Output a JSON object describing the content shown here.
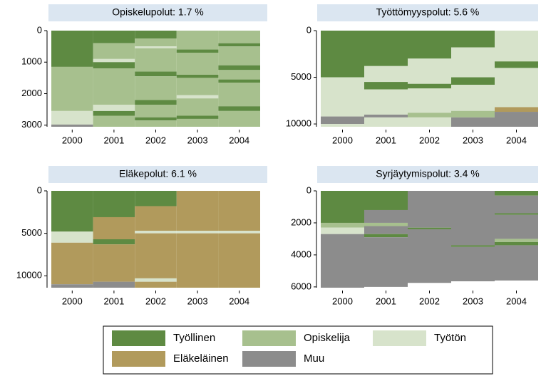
{
  "legend": [
    {
      "name": "Työllinen",
      "color": "#5e8a42"
    },
    {
      "name": "Opiskelija",
      "color": "#a7c08e"
    },
    {
      "name": "Työtön",
      "color": "#d7e3cb"
    },
    {
      "name": "Eläkeläinen",
      "color": "#b19a5c"
    },
    {
      "name": "Muu",
      "color": "#8c8c8c"
    }
  ],
  "chart_data": [
    {
      "type": "sequence",
      "title": "Opiskelupolut: 1.7 %",
      "categories": [
        "2000",
        "2001",
        "2002",
        "2003",
        "2004"
      ],
      "ylim": [
        0,
        3050
      ],
      "yticks": [
        0,
        1000,
        2000,
        3000
      ],
      "y_inverted": true,
      "columns": [
        [
          {
            "state": 0,
            "from": 0,
            "to": 1150
          },
          {
            "state": 1,
            "from": 1150,
            "to": 2550
          },
          {
            "state": 2,
            "from": 2550,
            "to": 2980
          },
          {
            "state": 4,
            "from": 2980,
            "to": 3050
          }
        ],
        [
          {
            "state": 0,
            "from": 0,
            "to": 400
          },
          {
            "state": 1,
            "from": 400,
            "to": 900
          },
          {
            "state": 2,
            "from": 900,
            "to": 1000
          },
          {
            "state": 0,
            "from": 1000,
            "to": 1200
          },
          {
            "state": 1,
            "from": 1200,
            "to": 2350
          },
          {
            "state": 2,
            "from": 2350,
            "to": 2550
          },
          {
            "state": 0,
            "from": 2550,
            "to": 2700
          },
          {
            "state": 1,
            "from": 2700,
            "to": 3050
          }
        ],
        [
          {
            "state": 0,
            "from": 0,
            "to": 250
          },
          {
            "state": 1,
            "from": 250,
            "to": 500
          },
          {
            "state": 2,
            "from": 500,
            "to": 560
          },
          {
            "state": 1,
            "from": 560,
            "to": 1300
          },
          {
            "state": 0,
            "from": 1300,
            "to": 1450
          },
          {
            "state": 1,
            "from": 1450,
            "to": 2200
          },
          {
            "state": 0,
            "from": 2200,
            "to": 2350
          },
          {
            "state": 1,
            "from": 2350,
            "to": 2750
          },
          {
            "state": 0,
            "from": 2750,
            "to": 2850
          },
          {
            "state": 1,
            "from": 2850,
            "to": 3050
          }
        ],
        [
          {
            "state": 1,
            "from": 0,
            "to": 600
          },
          {
            "state": 0,
            "from": 600,
            "to": 700
          },
          {
            "state": 1,
            "from": 700,
            "to": 1400
          },
          {
            "state": 0,
            "from": 1400,
            "to": 1500
          },
          {
            "state": 1,
            "from": 1500,
            "to": 2050
          },
          {
            "state": 2,
            "from": 2050,
            "to": 2150
          },
          {
            "state": 1,
            "from": 2150,
            "to": 2700
          },
          {
            "state": 0,
            "from": 2700,
            "to": 2800
          },
          {
            "state": 1,
            "from": 2800,
            "to": 3050
          }
        ],
        [
          {
            "state": 1,
            "from": 0,
            "to": 400
          },
          {
            "state": 0,
            "from": 400,
            "to": 500
          },
          {
            "state": 1,
            "from": 500,
            "to": 1100
          },
          {
            "state": 0,
            "from": 1100,
            "to": 1250
          },
          {
            "state": 1,
            "from": 1250,
            "to": 1550
          },
          {
            "state": 0,
            "from": 1550,
            "to": 1650
          },
          {
            "state": 1,
            "from": 1650,
            "to": 2400
          },
          {
            "state": 0,
            "from": 2400,
            "to": 2550
          },
          {
            "state": 1,
            "from": 2550,
            "to": 3050
          }
        ]
      ]
    },
    {
      "type": "sequence",
      "title": "Työttömyyspolut: 5.6 %",
      "categories": [
        "2000",
        "2001",
        "2002",
        "2003",
        "2004"
      ],
      "ylim": [
        0,
        10300
      ],
      "yticks": [
        0,
        5000,
        10000
      ],
      "y_inverted": true,
      "columns": [
        [
          {
            "state": 0,
            "from": 0,
            "to": 5000
          },
          {
            "state": 2,
            "from": 5000,
            "to": 9200
          },
          {
            "state": 4,
            "from": 9200,
            "to": 10000
          },
          {
            "state": 2,
            "from": 10000,
            "to": 10300
          }
        ],
        [
          {
            "state": 0,
            "from": 0,
            "to": 3800
          },
          {
            "state": 2,
            "from": 3800,
            "to": 5500
          },
          {
            "state": 0,
            "from": 5500,
            "to": 6300
          },
          {
            "state": 2,
            "from": 6300,
            "to": 9000
          },
          {
            "state": 4,
            "from": 9000,
            "to": 9300
          },
          {
            "state": 2,
            "from": 9300,
            "to": 10300
          }
        ],
        [
          {
            "state": 0,
            "from": 0,
            "to": 3000
          },
          {
            "state": 2,
            "from": 3000,
            "to": 5700
          },
          {
            "state": 0,
            "from": 5700,
            "to": 6200
          },
          {
            "state": 2,
            "from": 6200,
            "to": 8800
          },
          {
            "state": 1,
            "from": 8800,
            "to": 9300
          },
          {
            "state": 2,
            "from": 9300,
            "to": 10300
          }
        ],
        [
          {
            "state": 0,
            "from": 0,
            "to": 1800
          },
          {
            "state": 2,
            "from": 1800,
            "to": 5000
          },
          {
            "state": 0,
            "from": 5000,
            "to": 5800
          },
          {
            "state": 2,
            "from": 5800,
            "to": 8600
          },
          {
            "state": 1,
            "from": 8600,
            "to": 9300
          },
          {
            "state": 4,
            "from": 9300,
            "to": 10300
          }
        ],
        [
          {
            "state": 2,
            "from": 0,
            "to": 3300
          },
          {
            "state": 0,
            "from": 3300,
            "to": 4000
          },
          {
            "state": 2,
            "from": 4000,
            "to": 8200
          },
          {
            "state": 3,
            "from": 8200,
            "to": 8700
          },
          {
            "state": 4,
            "from": 8700,
            "to": 10300
          }
        ]
      ]
    },
    {
      "type": "sequence",
      "title": "Eläkepolut: 6.1 %",
      "categories": [
        "2000",
        "2001",
        "2002",
        "2003",
        "2004"
      ],
      "ylim": [
        0,
        11400
      ],
      "yticks": [
        0,
        5000,
        10000
      ],
      "y_inverted": true,
      "columns": [
        [
          {
            "state": 0,
            "from": 0,
            "to": 4800
          },
          {
            "state": 2,
            "from": 4800,
            "to": 6100
          },
          {
            "state": 3,
            "from": 6100,
            "to": 11000
          },
          {
            "state": 4,
            "from": 11000,
            "to": 11400
          }
        ],
        [
          {
            "state": 0,
            "from": 0,
            "to": 3100
          },
          {
            "state": 3,
            "from": 3100,
            "to": 5700
          },
          {
            "state": 0,
            "from": 5700,
            "to": 6300
          },
          {
            "state": 3,
            "from": 6300,
            "to": 10700
          },
          {
            "state": 4,
            "from": 10700,
            "to": 11400
          }
        ],
        [
          {
            "state": 0,
            "from": 0,
            "to": 1800
          },
          {
            "state": 3,
            "from": 1800,
            "to": 4700
          },
          {
            "state": 2,
            "from": 4700,
            "to": 5000
          },
          {
            "state": 3,
            "from": 5000,
            "to": 10300
          },
          {
            "state": 2,
            "from": 10300,
            "to": 10700
          },
          {
            "state": 3,
            "from": 10700,
            "to": 11400
          }
        ],
        [
          {
            "state": 3,
            "from": 0,
            "to": 4700
          },
          {
            "state": 2,
            "from": 4700,
            "to": 5000
          },
          {
            "state": 3,
            "from": 5000,
            "to": 11400
          }
        ],
        [
          {
            "state": 3,
            "from": 0,
            "to": 4700
          },
          {
            "state": 2,
            "from": 4700,
            "to": 5000
          },
          {
            "state": 3,
            "from": 5000,
            "to": 11400
          }
        ]
      ]
    },
    {
      "type": "sequence",
      "title": "Syrjäytymispolut: 3.4 %",
      "categories": [
        "2000",
        "2001",
        "2002",
        "2003",
        "2004"
      ],
      "ylim": [
        0,
        6050
      ],
      "yticks": [
        0,
        2000,
        4000,
        6000
      ],
      "y_inverted": true,
      "columns": [
        [
          {
            "state": 0,
            "from": 0,
            "to": 2000
          },
          {
            "state": 1,
            "from": 2000,
            "to": 2300
          },
          {
            "state": 2,
            "from": 2300,
            "to": 2700
          },
          {
            "state": 4,
            "from": 2700,
            "to": 6050
          }
        ],
        [
          {
            "state": 0,
            "from": 0,
            "to": 1200
          },
          {
            "state": 4,
            "from": 1200,
            "to": 2000
          },
          {
            "state": 1,
            "from": 2000,
            "to": 2200
          },
          {
            "state": 4,
            "from": 2200,
            "to": 2700
          },
          {
            "state": 0,
            "from": 2700,
            "to": 2900
          },
          {
            "state": 4,
            "from": 2900,
            "to": 6000
          }
        ],
        [
          {
            "state": 4,
            "from": 0,
            "to": 2300
          },
          {
            "state": 0,
            "from": 2300,
            "to": 2400
          },
          {
            "state": 4,
            "from": 2400,
            "to": 5750
          }
        ],
        [
          {
            "state": 4,
            "from": 0,
            "to": 3400
          },
          {
            "state": 0,
            "from": 3400,
            "to": 3500
          },
          {
            "state": 4,
            "from": 3500,
            "to": 5650
          }
        ],
        [
          {
            "state": 0,
            "from": 0,
            "to": 300
          },
          {
            "state": 4,
            "from": 300,
            "to": 1400
          },
          {
            "state": 0,
            "from": 1400,
            "to": 1500
          },
          {
            "state": 4,
            "from": 1500,
            "to": 3000
          },
          {
            "state": 1,
            "from": 3000,
            "to": 3200
          },
          {
            "state": 0,
            "from": 3200,
            "to": 3400
          },
          {
            "state": 4,
            "from": 3400,
            "to": 5600
          }
        ]
      ]
    }
  ]
}
